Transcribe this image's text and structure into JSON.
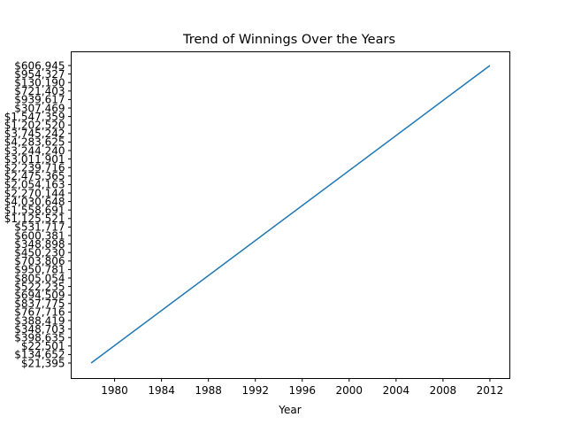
{
  "chart_data": {
    "type": "line",
    "title": "Trend of Winnings Over the Years",
    "xlabel": "Year",
    "ylabel": "",
    "xlim": [
      1976.3,
      2013.7
    ],
    "x_ticks": [
      1980,
      1984,
      1988,
      1992,
      1996,
      2000,
      2004,
      2008,
      2012
    ],
    "y_axis_kind": "categorical",
    "categories": [
      "$21,395",
      "$134,652",
      "$22,501",
      "$398,635",
      "$348,703",
      "$388,419",
      "$767,716",
      "$837,775",
      "$694,509",
      "$522,235",
      "$805,054",
      "$950,781",
      "$703,806",
      "$450,230",
      "$348,898",
      "$600,381",
      "$531,717",
      "$1,125,521",
      "$1,558,691",
      "$4,030,648",
      "$2,270,144",
      "$2,054,163",
      "$2,475,365",
      "$2,239,716",
      "$3,011,901",
      "$3,244,240",
      "$4,283,625",
      "$3,745,242",
      "$1,202,520",
      "$1,547,359",
      "$307,469",
      "$939,617",
      "$721,403",
      "$130,190",
      "$954,327",
      "$606,945"
    ],
    "series": [
      {
        "color": "#1f77b4",
        "x": [
          1978,
          2012
        ],
        "y": [
          "$21,395",
          "$606,945"
        ]
      }
    ],
    "grid": false,
    "legend": "none"
  }
}
